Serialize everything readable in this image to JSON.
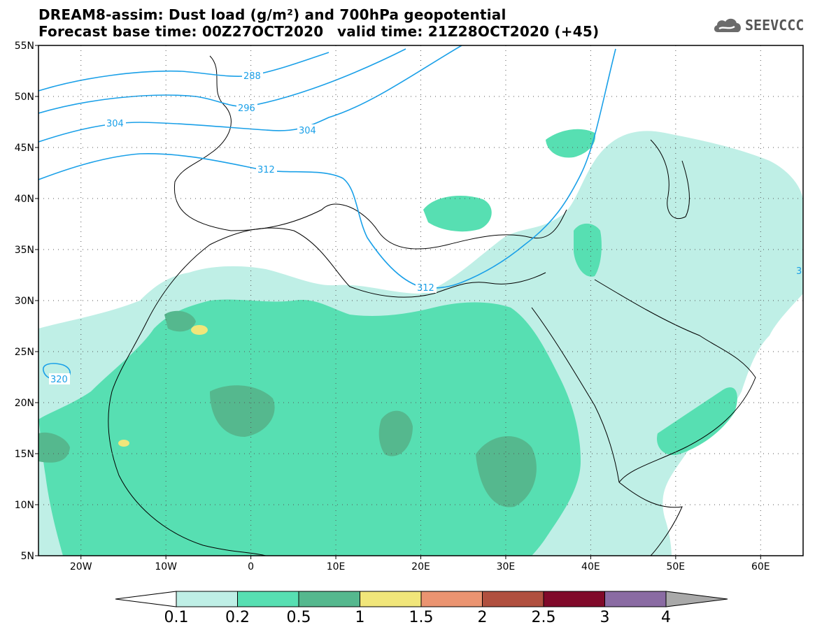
{
  "title": {
    "line1": "DREAM8-assim: Dust load (g/m²) and 700hPa geopotential",
    "line2": "Forecast base time: 00Z27OCT2020",
    "valid": "valid time: 21Z28OCT2020 (+45)"
  },
  "logo": {
    "icon": "cloud-icon",
    "text": "SEEVCCC"
  },
  "map": {
    "lon_range": [
      -25,
      65
    ],
    "lat_range": [
      5,
      55
    ],
    "lat_ticks": [
      {
        "value": 55,
        "label": "55N"
      },
      {
        "value": 50,
        "label": "50N"
      },
      {
        "value": 45,
        "label": "45N"
      },
      {
        "value": 40,
        "label": "40N"
      },
      {
        "value": 35,
        "label": "35N"
      },
      {
        "value": 30,
        "label": "30N"
      },
      {
        "value": 25,
        "label": "25N"
      },
      {
        "value": 20,
        "label": "20N"
      },
      {
        "value": 15,
        "label": "15N"
      },
      {
        "value": 10,
        "label": "10N"
      },
      {
        "value": 5,
        "label": "5N"
      }
    ],
    "lon_ticks": [
      {
        "value": -20,
        "label": "20W"
      },
      {
        "value": -10,
        "label": "10W"
      },
      {
        "value": 0,
        "label": "0"
      },
      {
        "value": 10,
        "label": "10E"
      },
      {
        "value": 20,
        "label": "20E"
      },
      {
        "value": 30,
        "label": "30E"
      },
      {
        "value": 40,
        "label": "40E"
      },
      {
        "value": 50,
        "label": "50E"
      },
      {
        "value": 60,
        "label": "60E"
      }
    ],
    "grid": "dotted",
    "contour_labels": [
      {
        "text": "288",
        "lon": -25.0,
        "lat": 51.0
      },
      {
        "text": "296",
        "lon": -25.0,
        "lat": 50.0
      },
      {
        "text": "304",
        "lon": -25.0,
        "lat": 49.0
      },
      {
        "text": "312",
        "lon": -25.0,
        "lat": 48.0
      },
      {
        "text": "320",
        "lon": -25.0,
        "lat": 47.0
      },
      {
        "text": "3",
        "lon": -25.0,
        "lat": 46.0
      }
    ]
  },
  "colorbar": {
    "colors": [
      "#bfefe6",
      "#57dfb2",
      "#55b88e",
      "#f1e67a",
      "#eb9471",
      "#b0503f",
      "#800a2a",
      "#8a6ba3"
    ],
    "under_color": "#ffffff",
    "over_color": "#a9a9a9",
    "labels": [
      "0.1",
      "0.2",
      "0.5",
      "1",
      "1.5",
      "2",
      "2.5",
      "3",
      "4"
    ]
  },
  "contour_color": "#1aa0e8"
}
